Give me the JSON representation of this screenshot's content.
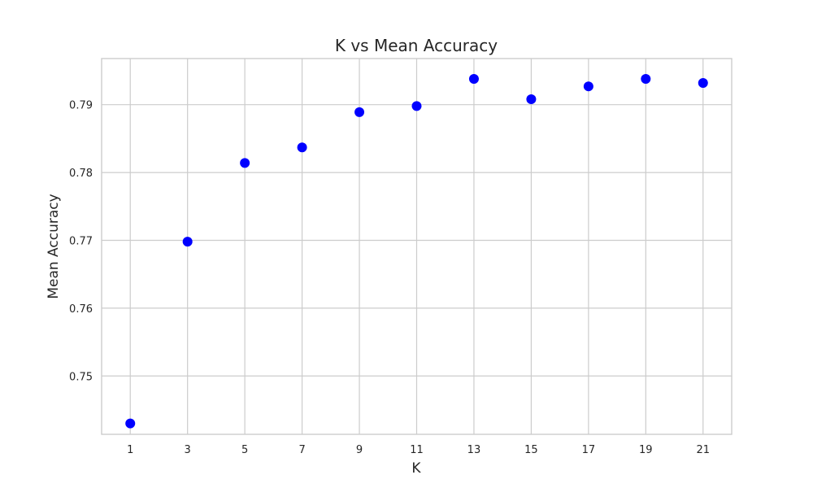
{
  "chart_data": {
    "type": "scatter",
    "title": "K vs Mean Accuracy",
    "xlabel": "K",
    "ylabel": "Mean Accuracy",
    "x": [
      1,
      3,
      5,
      7,
      9,
      11,
      13,
      15,
      17,
      19,
      21
    ],
    "y": [
      0.743,
      0.7698,
      0.7814,
      0.7837,
      0.7889,
      0.7898,
      0.7938,
      0.7908,
      0.7927,
      0.7938,
      0.7932
    ],
    "xticks": [
      1,
      3,
      5,
      7,
      9,
      11,
      13,
      15,
      17,
      19,
      21
    ],
    "yticks": [
      0.75,
      0.76,
      0.77,
      0.78,
      0.79
    ],
    "xlim": [
      0,
      22
    ],
    "ylim": [
      0.7414,
      0.7968
    ],
    "grid": true,
    "marker_color": "#0000ff",
    "grid_color": "#cccccc"
  }
}
